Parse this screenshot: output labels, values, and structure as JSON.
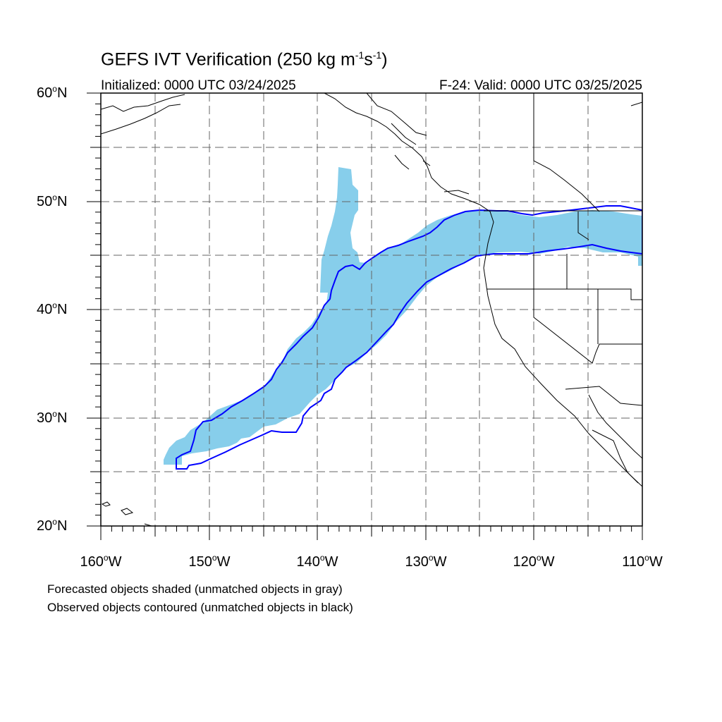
{
  "header": {
    "title_main": "GEFS IVT Verification (250 kg m",
    "title_exp1": "-1",
    "title_mid": "s",
    "title_exp2": "-1",
    "title_end": ")",
    "initialized": "Initialized: 0000 UTC 03/24/2025",
    "valid": "F-24: Valid: 0000 UTC 03/25/2025"
  },
  "axes": {
    "lat_ticks": [
      {
        "value": "60",
        "suffix": "N"
      },
      {
        "value": "50",
        "suffix": "N"
      },
      {
        "value": "40",
        "suffix": "N"
      },
      {
        "value": "30",
        "suffix": "N"
      },
      {
        "value": "20",
        "suffix": "N"
      }
    ],
    "lon_ticks": [
      {
        "value": "160",
        "suffix": "W"
      },
      {
        "value": "150",
        "suffix": "W"
      },
      {
        "value": "140",
        "suffix": "W"
      },
      {
        "value": "130",
        "suffix": "W"
      },
      {
        "value": "120",
        "suffix": "W"
      },
      {
        "value": "110",
        "suffix": "W"
      }
    ],
    "degree_symbol": "o",
    "lat_range": [
      20,
      60
    ],
    "lon_range": [
      -160,
      -110
    ],
    "grid_dashed": true
  },
  "legend_notes": {
    "line1": "Forecasted objects shaded (unmatched objects in gray)",
    "line2": "Observed objects contoured (unmatched objects in black)"
  },
  "colors": {
    "forecast_fill": "#87ceeb",
    "observed_contour": "#0000ff",
    "coastline": "#000000",
    "grid": "#555555"
  }
}
